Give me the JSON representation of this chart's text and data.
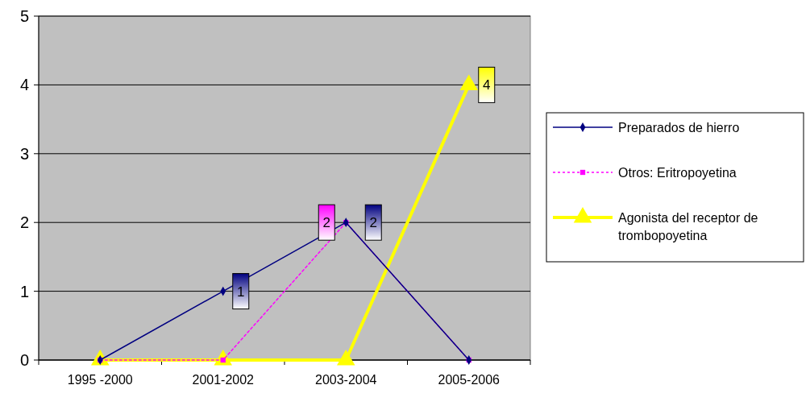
{
  "chart_data": {
    "type": "line",
    "categories": [
      "1995 -2000",
      "2001-2002",
      "2003-2004",
      "2005-2006"
    ],
    "ylim": [
      0,
      5
    ],
    "yticks": [
      0,
      1,
      2,
      3,
      4,
      5
    ],
    "grid": "y",
    "legend": "right",
    "series": [
      {
        "name": "Preparados de hierro",
        "color": "#000080",
        "values": [
          0,
          1,
          2,
          0
        ],
        "marker": "diamond",
        "line_style": "solid",
        "value_labels": [
          null,
          "1",
          "2",
          null
        ]
      },
      {
        "name": "Otros: Eritropoyetina",
        "color": "#ff00ff",
        "values": [
          0,
          0,
          2,
          0
        ],
        "marker": "square",
        "line_style": "dotted",
        "value_labels": [
          null,
          null,
          "2",
          null
        ]
      },
      {
        "name": "Agonista del receptor de trombopoyetina",
        "color": "#ffff00",
        "values": [
          0,
          0,
          0,
          4
        ],
        "marker": "triangle",
        "line_style": "solid",
        "value_labels": [
          null,
          null,
          null,
          "4"
        ]
      }
    ]
  }
}
